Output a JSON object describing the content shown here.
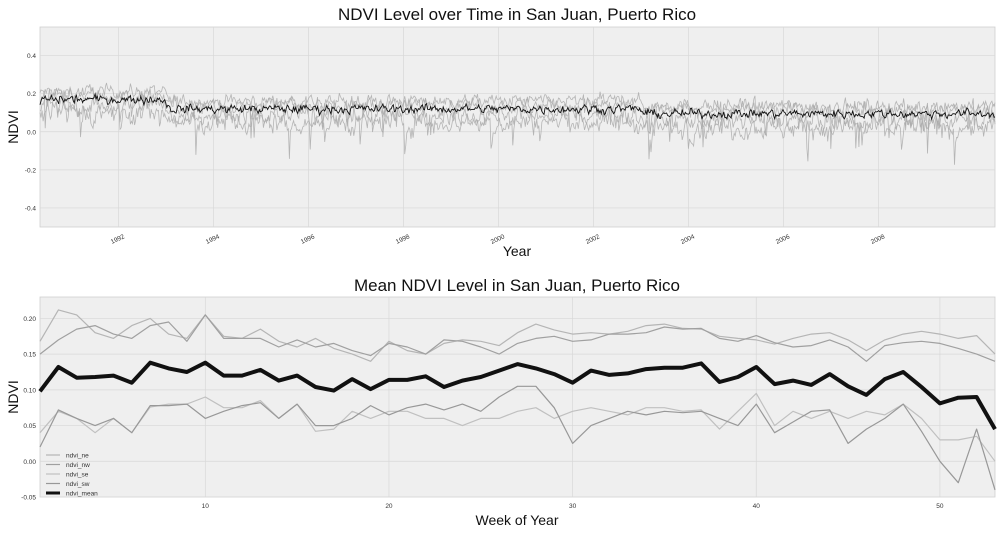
{
  "chart_data": [
    {
      "type": "line",
      "title": "NDVI Level over Time in San Juan, Puerto Rico",
      "xlabel": "Year",
      "ylabel": "NDVI",
      "xlim": [
        1990.35,
        2010.45
      ],
      "ylim": [
        -0.5,
        0.55
      ],
      "x_ticks": [
        1992,
        1994,
        1996,
        1998,
        2000,
        2002,
        2004,
        2006,
        2008
      ],
      "y_ticks": [
        -0.4,
        -0.2,
        0.0,
        0.2,
        0.4
      ],
      "grid": true,
      "series_summary": [
        {
          "name": "ndvi_mean",
          "color": "#000000",
          "approx_level": 0.12,
          "spread": 0.04
        },
        {
          "name": "ndvi_ne",
          "color": "#aaaaaa",
          "approx_level": 0.16,
          "spread": 0.06
        },
        {
          "name": "ndvi_nw",
          "color": "#aaaaaa",
          "approx_level": 0.14,
          "spread": 0.07
        },
        {
          "name": "ndvi_se",
          "color": "#aaaaaa",
          "approx_level": 0.09,
          "spread": 0.08
        },
        {
          "name": "ndvi_sw",
          "color": "#aaaaaa",
          "approx_level": 0.05,
          "spread": 0.1
        }
      ]
    },
    {
      "type": "line",
      "title": "Mean NDVI Level in San Juan, Puerto Rico",
      "xlabel": "Week of Year",
      "ylabel": "NDVI",
      "xlim": [
        1,
        53
      ],
      "ylim": [
        -0.05,
        0.23
      ],
      "x_ticks": [
        10,
        20,
        30,
        40,
        50
      ],
      "y_ticks": [
        -0.05,
        0.0,
        0.05,
        0.1,
        0.15,
        0.2
      ],
      "y_tick_labels": [
        "-0.05",
        "0.00",
        "0.05",
        "0.10",
        "0.15",
        "0.20"
      ],
      "grid": true,
      "legend": "bottom-left",
      "x": [
        1,
        2,
        3,
        4,
        5,
        6,
        7,
        8,
        9,
        10,
        11,
        12,
        13,
        14,
        15,
        16,
        17,
        18,
        19,
        20,
        21,
        22,
        23,
        24,
        25,
        26,
        27,
        28,
        29,
        30,
        31,
        32,
        33,
        34,
        35,
        36,
        37,
        38,
        39,
        40,
        41,
        42,
        43,
        44,
        45,
        46,
        47,
        48,
        49,
        50,
        51,
        52,
        53
      ],
      "series": [
        {
          "name": "ndvi_ne",
          "color": "#b5b5b5",
          "width": 1.2,
          "values": [
            0.168,
            0.212,
            0.205,
            0.18,
            0.172,
            0.19,
            0.2,
            0.178,
            0.172,
            0.205,
            0.175,
            0.172,
            0.185,
            0.168,
            0.16,
            0.172,
            0.158,
            0.15,
            0.14,
            0.168,
            0.155,
            0.15,
            0.165,
            0.17,
            0.168,
            0.162,
            0.18,
            0.192,
            0.184,
            0.178,
            0.18,
            0.178,
            0.182,
            0.19,
            0.192,
            0.186,
            0.185,
            0.175,
            0.172,
            0.17,
            0.164,
            0.172,
            0.178,
            0.18,
            0.17,
            0.155,
            0.17,
            0.178,
            0.182,
            0.178,
            0.172,
            0.176,
            0.15
          ]
        },
        {
          "name": "ndvi_nw",
          "color": "#a0a0a0",
          "width": 1.2,
          "values": [
            0.15,
            0.17,
            0.185,
            0.19,
            0.178,
            0.172,
            0.19,
            0.195,
            0.168,
            0.205,
            0.172,
            0.172,
            0.172,
            0.16,
            0.17,
            0.16,
            0.165,
            0.155,
            0.148,
            0.165,
            0.16,
            0.15,
            0.17,
            0.168,
            0.16,
            0.15,
            0.165,
            0.172,
            0.175,
            0.168,
            0.17,
            0.178,
            0.178,
            0.18,
            0.188,
            0.185,
            0.186,
            0.172,
            0.168,
            0.176,
            0.166,
            0.16,
            0.162,
            0.17,
            0.16,
            0.14,
            0.162,
            0.166,
            0.168,
            0.165,
            0.158,
            0.15,
            0.14
          ]
        },
        {
          "name": "ndvi_se",
          "color": "#c0c0c0",
          "width": 1.2,
          "values": [
            0.04,
            0.07,
            0.06,
            0.04,
            0.06,
            0.04,
            0.076,
            0.08,
            0.08,
            0.09,
            0.075,
            0.075,
            0.085,
            0.06,
            0.08,
            0.042,
            0.045,
            0.07,
            0.06,
            0.07,
            0.07,
            0.06,
            0.06,
            0.05,
            0.06,
            0.06,
            0.07,
            0.075,
            0.06,
            0.07,
            0.075,
            0.07,
            0.065,
            0.075,
            0.075,
            0.07,
            0.072,
            0.045,
            0.07,
            0.095,
            0.05,
            0.07,
            0.06,
            0.07,
            0.06,
            0.07,
            0.065,
            0.08,
            0.06,
            0.03,
            0.03,
            0.035,
            0.0
          ]
        },
        {
          "name": "ndvi_sw",
          "color": "#989898",
          "width": 1.2,
          "values": [
            0.02,
            0.072,
            0.06,
            0.05,
            0.06,
            0.04,
            0.078,
            0.078,
            0.08,
            0.06,
            0.07,
            0.078,
            0.082,
            0.06,
            0.08,
            0.05,
            0.05,
            0.06,
            0.078,
            0.065,
            0.075,
            0.08,
            0.072,
            0.08,
            0.07,
            0.09,
            0.105,
            0.105,
            0.075,
            0.025,
            0.05,
            0.06,
            0.07,
            0.065,
            0.07,
            0.068,
            0.07,
            0.06,
            0.05,
            0.08,
            0.04,
            0.055,
            0.07,
            0.072,
            0.025,
            0.045,
            0.06,
            0.08,
            0.042,
            0.0,
            -0.03,
            0.045,
            -0.04
          ]
        },
        {
          "name": "ndvi_mean",
          "color": "#111111",
          "width": 4,
          "values": [
            0.098,
            0.132,
            0.117,
            0.118,
            0.12,
            0.11,
            0.138,
            0.13,
            0.125,
            0.138,
            0.12,
            0.12,
            0.128,
            0.113,
            0.12,
            0.104,
            0.099,
            0.115,
            0.101,
            0.114,
            0.114,
            0.119,
            0.104,
            0.113,
            0.118,
            0.127,
            0.136,
            0.13,
            0.122,
            0.11,
            0.127,
            0.121,
            0.123,
            0.129,
            0.131,
            0.131,
            0.137,
            0.111,
            0.118,
            0.132,
            0.108,
            0.113,
            0.107,
            0.122,
            0.105,
            0.093,
            0.115,
            0.125,
            0.104,
            0.081,
            0.089,
            0.09,
            0.045
          ]
        }
      ]
    }
  ]
}
